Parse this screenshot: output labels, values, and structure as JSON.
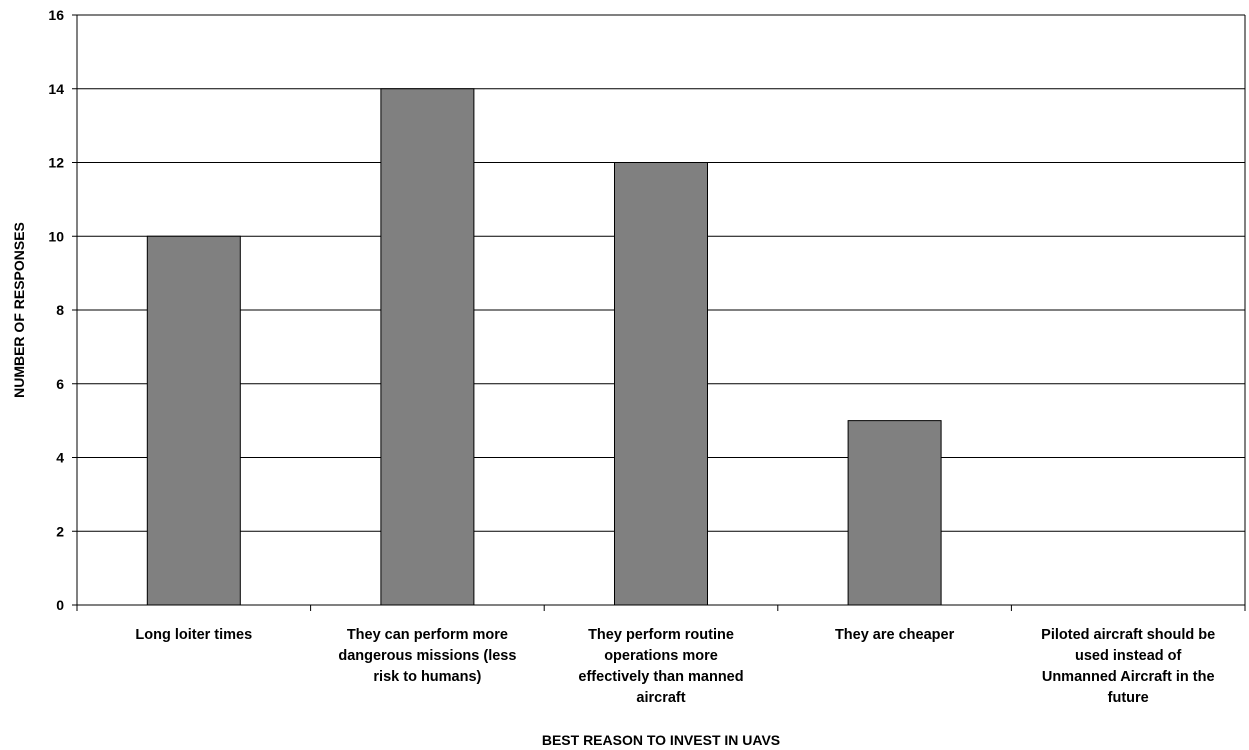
{
  "chart_data": {
    "type": "bar",
    "categories": [
      [
        "Long loiter times"
      ],
      [
        "They can perform more",
        "dangerous missions (less",
        "risk to humans)"
      ],
      [
        "They perform routine",
        "operations more",
        "effectively than manned",
        "aircraft"
      ],
      [
        "They are cheaper"
      ],
      [
        "Piloted aircraft should be",
        "used instead of",
        "Unmanned Aircraft in the",
        "future"
      ]
    ],
    "values": [
      10,
      14,
      12,
      5,
      0
    ],
    "yticks": [
      "0",
      "2",
      "4",
      "6",
      "8",
      "10",
      "12",
      "14",
      "16"
    ],
    "ylim": [
      0,
      16
    ],
    "xlabel": "BEST REASON TO INVEST IN UAVS",
    "ylabel": "NUMBER OF RESPONSES",
    "bar_color": "#808080",
    "grid": true
  }
}
